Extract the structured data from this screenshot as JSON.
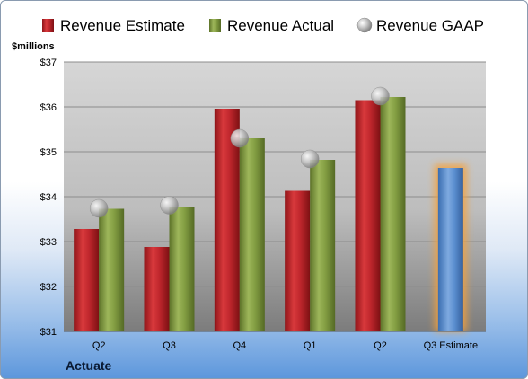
{
  "chart_data": {
    "type": "bar",
    "company": "Actuate",
    "unit_label": "$millions",
    "categories": [
      "Q2",
      "Q3",
      "Q4",
      "Q1",
      "Q2",
      "Q3 Estimate"
    ],
    "series": [
      {
        "name": "Revenue Estimate",
        "color": "#c0272d",
        "values": [
          33.28,
          32.88,
          35.96,
          34.13,
          36.15,
          null
        ]
      },
      {
        "name": "Revenue Actual",
        "color": "#7f9a3e",
        "values": [
          33.73,
          33.78,
          35.3,
          34.82,
          36.22,
          null
        ]
      },
      {
        "name": "Revenue GAAP",
        "color": "#b8b8b8",
        "type": "marker",
        "values": [
          33.74,
          33.81,
          35.3,
          34.84,
          36.24,
          null
        ]
      }
    ],
    "projection": {
      "category_index": 5,
      "value": 34.64,
      "color": "#5b8fd0",
      "glow": "#f5a13a"
    },
    "ylim": [
      31,
      37
    ],
    "yticks": [
      "$31",
      "$32",
      "$33",
      "$34",
      "$35",
      "$36",
      "$37"
    ],
    "grid": true,
    "legend_position": "top"
  }
}
